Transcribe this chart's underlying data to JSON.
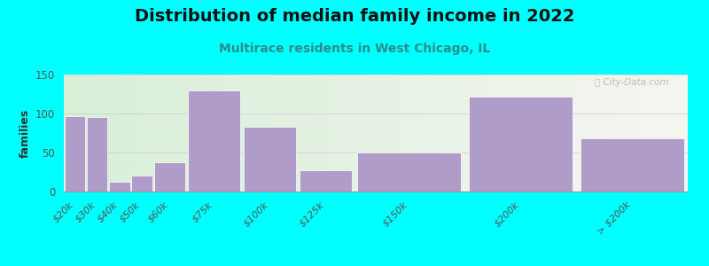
{
  "title": "Distribution of median family income in 2022",
  "subtitle": "Multirace residents in West Chicago, IL",
  "ylabel": "families",
  "categories": [
    "$20k",
    "$30k",
    "$40k",
    "$50k",
    "$60k",
    "$75k",
    "$100k",
    "$125k",
    "$150k",
    "$200k",
    "> $200k"
  ],
  "values": [
    97,
    95,
    13,
    20,
    38,
    130,
    83,
    27,
    50,
    122,
    68
  ],
  "bar_color": "#b09cc8",
  "edges": [
    0,
    10,
    20,
    30,
    40,
    55,
    80,
    105,
    130,
    180,
    230,
    280
  ],
  "background_color": "#00FFFF",
  "plot_bg_color_left": "#d8efd8",
  "plot_bg_color_right": "#f5f5f0",
  "title_color": "#111111",
  "subtitle_color": "#2e8b8b",
  "tick_color": "#555555",
  "ylabel_color": "#333333",
  "ylim": [
    0,
    150
  ],
  "yticks": [
    0,
    50,
    100,
    150
  ],
  "watermark": "Ⓜ City-Data.com",
  "title_fontsize": 14,
  "subtitle_fontsize": 10,
  "ylabel_fontsize": 9
}
